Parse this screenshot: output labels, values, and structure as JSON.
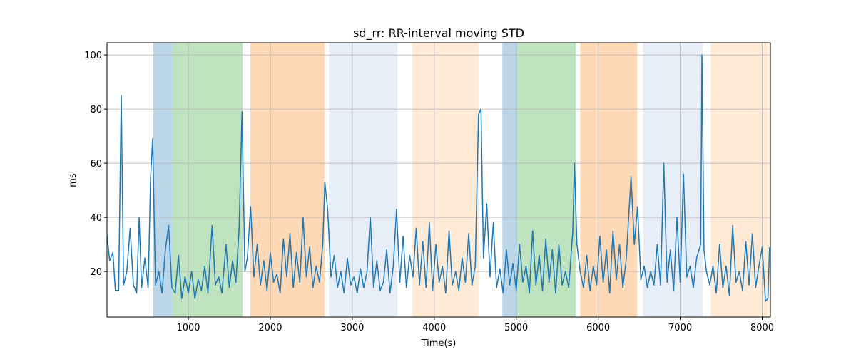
{
  "chart_data": {
    "type": "line",
    "title": "sd_rr: RR-interval moving STD",
    "x_label": "Time(s)",
    "y_label": "ms",
    "xlim": [
      8,
      8100
    ],
    "ylim": [
      3.2,
      104.5
    ],
    "xticks": [
      1000,
      2000,
      3000,
      4000,
      5000,
      6000,
      7000,
      8000
    ],
    "yticks": [
      20,
      40,
      60,
      80,
      100
    ],
    "grid": true,
    "span_alpha": 0.3,
    "spans": [
      {
        "start": 573,
        "end": 800,
        "color": "#1f77b4"
      },
      {
        "start": 800,
        "end": 1662,
        "color": "#2ca02c"
      },
      {
        "start": 1757,
        "end": 2663,
        "color": "#ff7f0e"
      },
      {
        "start": 2715,
        "end": 3551,
        "color": "#aec7e8"
      },
      {
        "start": 3734,
        "end": 4543,
        "color": "#ffbb78"
      },
      {
        "start": 4831,
        "end": 5014,
        "color": "#1f77b4"
      },
      {
        "start": 5014,
        "end": 5727,
        "color": "#2ca02c"
      },
      {
        "start": 5780,
        "end": 6476,
        "color": "#ff7f0e"
      },
      {
        "start": 6546,
        "end": 7277,
        "color": "#aec7e8"
      },
      {
        "start": 7373,
        "end": 8104,
        "color": "#ffbb78"
      }
    ],
    "x": [
      10,
      40,
      80,
      110,
      150,
      182,
      210,
      250,
      290,
      330,
      370,
      400,
      430,
      470,
      510,
      540,
      565,
      600,
      640,
      680,
      720,
      760,
      800,
      840,
      880,
      920,
      960,
      1000,
      1040,
      1080,
      1120,
      1160,
      1200,
      1240,
      1290,
      1330,
      1370,
      1410,
      1460,
      1500,
      1540,
      1580,
      1620,
      1655,
      1690,
      1720,
      1760,
      1800,
      1840,
      1880,
      1920,
      1960,
      2000,
      2040,
      2080,
      2120,
      2160,
      2200,
      2240,
      2280,
      2320,
      2360,
      2400,
      2440,
      2480,
      2520,
      2560,
      2600,
      2640,
      2665,
      2700,
      2740,
      2780,
      2820,
      2860,
      2900,
      2940,
      2980,
      3020,
      3060,
      3100,
      3140,
      3180,
      3220,
      3260,
      3300,
      3340,
      3380,
      3420,
      3460,
      3500,
      3540,
      3580,
      3620,
      3660,
      3700,
      3740,
      3780,
      3820,
      3860,
      3900,
      3940,
      3980,
      4020,
      4060,
      4100,
      4140,
      4180,
      4220,
      4260,
      4300,
      4340,
      4380,
      4420,
      4460,
      4500,
      4540,
      4570,
      4600,
      4640,
      4680,
      4720,
      4760,
      4800,
      4840,
      4880,
      4920,
      4960,
      5000,
      5040,
      5080,
      5120,
      5160,
      5200,
      5240,
      5280,
      5320,
      5360,
      5400,
      5440,
      5480,
      5520,
      5560,
      5600,
      5640,
      5690,
      5710,
      5740,
      5780,
      5820,
      5860,
      5900,
      5940,
      5980,
      6020,
      6060,
      6100,
      6140,
      6180,
      6220,
      6260,
      6300,
      6340,
      6400,
      6440,
      6480,
      6520,
      6560,
      6600,
      6640,
      6680,
      6720,
      6760,
      6800,
      6840,
      6880,
      6920,
      6960,
      7000,
      7040,
      7080,
      7120,
      7160,
      7200,
      7250,
      7265,
      7290,
      7320,
      7360,
      7400,
      7440,
      7480,
      7520,
      7560,
      7600,
      7640,
      7680,
      7720,
      7760,
      7800,
      7840,
      7880,
      7920,
      7960,
      8000,
      8040,
      8070,
      8090
    ],
    "series": [
      {
        "name": "sd_rr",
        "color": "#1f77b4",
        "values": [
          33,
          24,
          27,
          13,
          13,
          85,
          15,
          20,
          36,
          15,
          12,
          40,
          14,
          25,
          14,
          55,
          69,
          15,
          20,
          12,
          28,
          37,
          14,
          12,
          26,
          10,
          18,
          12,
          20,
          10,
          17,
          13,
          22,
          12,
          37,
          15,
          18,
          12,
          30,
          14,
          24,
          16,
          36,
          79,
          20,
          25,
          44,
          18,
          30,
          15,
          24,
          13,
          27,
          16,
          19,
          12,
          32,
          18,
          34,
          14,
          27,
          16,
          40,
          18,
          29,
          14,
          22,
          16,
          30,
          53,
          43,
          18,
          26,
          14,
          20,
          12,
          25,
          15,
          18,
          12,
          21,
          14,
          20,
          40,
          14,
          24,
          13,
          16,
          28,
          12,
          22,
          43,
          16,
          33,
          14,
          26,
          18,
          36,
          15,
          31,
          14,
          38,
          13,
          30,
          16,
          22,
          12,
          35,
          15,
          20,
          13,
          25,
          16,
          34,
          15,
          22,
          78,
          80,
          25,
          45,
          18,
          38,
          14,
          21,
          12,
          28,
          15,
          23,
          13,
          30,
          16,
          22,
          12,
          35,
          15,
          26,
          13,
          32,
          16,
          28,
          12,
          30,
          15,
          20,
          14,
          35,
          60,
          30,
          20,
          14,
          26,
          13,
          22,
          15,
          33,
          16,
          28,
          12,
          35,
          17,
          30,
          14,
          24,
          55,
          30,
          44,
          17,
          22,
          14,
          20,
          15,
          30,
          15,
          60,
          16,
          28,
          13,
          40,
          16,
          56,
          18,
          22,
          14,
          25,
          30,
          100,
          28,
          20,
          15,
          22,
          12,
          30,
          14,
          22,
          11,
          37,
          16,
          20,
          13,
          31,
          15,
          34,
          14,
          22,
          29,
          9,
          10,
          29
        ]
      }
    ]
  }
}
